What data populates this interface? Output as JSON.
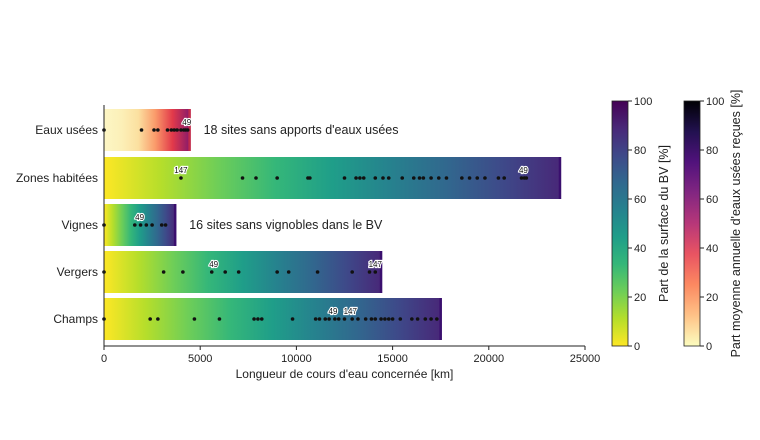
{
  "chart_data": {
    "type": "bar",
    "orientation": "horizontal",
    "xlabel": "Longueur de cours d'eau concernée [km]",
    "xlim": [
      0,
      25000
    ],
    "xticks": [
      "0",
      "5000",
      "10000",
      "15000",
      "20000",
      "25000"
    ],
    "series": [
      {
        "category": "Eaux usées",
        "length_km": 4450,
        "colormap": "eaux",
        "site_points_km": [
          0,
          1950,
          2600,
          2800,
          3300,
          3500,
          3650,
          3800,
          4000,
          4150,
          4250,
          4350
        ],
        "site_labels": [
          {
            "text": "49",
            "x_km": 4300
          }
        ],
        "annotation": "18 sites sans apports d'eaux usées"
      },
      {
        "category": "Zones habitées",
        "length_km": 23700,
        "colormap": "surface",
        "site_points_km": [
          4000,
          7200,
          7900,
          9000,
          10600,
          10700,
          12500,
          13100,
          13300,
          13500,
          14100,
          14500,
          14800,
          15500,
          16100,
          16400,
          16600,
          17000,
          17400,
          17800,
          18600,
          19000,
          19400,
          19800,
          20500,
          20800,
          21700,
          21850,
          21950
        ],
        "site_labels": [
          {
            "text": "147",
            "x_km": 4000
          },
          {
            "text": "49",
            "x_km": 21800
          }
        ],
        "annotation": ""
      },
      {
        "category": "Vignes",
        "length_km": 3700,
        "colormap": "surface",
        "site_points_km": [
          0,
          1600,
          1900,
          2200,
          2500,
          3000,
          3200
        ],
        "site_labels": [
          {
            "text": "49",
            "x_km": 1850
          }
        ],
        "annotation": "16 sites sans vignobles dans le BV"
      },
      {
        "category": "Vergers",
        "length_km": 14400,
        "colormap": "surface",
        "site_points_km": [
          0,
          3100,
          4100,
          5600,
          6300,
          7000,
          9000,
          9600,
          11100,
          12900,
          13800,
          14100
        ],
        "site_labels": [
          {
            "text": "49",
            "x_km": 5700
          },
          {
            "text": "147",
            "x_km": 14100
          }
        ],
        "annotation": ""
      },
      {
        "category": "Champs",
        "length_km": 17500,
        "colormap": "surface",
        "site_points_km": [
          0,
          2400,
          2800,
          4700,
          6000,
          7800,
          8000,
          8200,
          9800,
          11000,
          11200,
          11500,
          11700,
          12000,
          12200,
          12500,
          12900,
          13200,
          13600,
          13900,
          14100,
          14400,
          14600,
          14800,
          15000,
          15400,
          16000,
          16300,
          16700,
          17000,
          17300
        ],
        "site_labels": [
          {
            "text": "49",
            "x_km": 11900
          },
          {
            "text": "147",
            "x_km": 12800
          }
        ],
        "annotation": ""
      }
    ],
    "colorbars": [
      {
        "label": "Part de la surface du BV [%]",
        "ticks": [
          "0",
          "20",
          "40",
          "60",
          "80",
          "100"
        ],
        "range": [
          0,
          100
        ],
        "colormap": "surface"
      },
      {
        "label": "Part moyenne annuelle d'eaux usées reçues [%]",
        "ticks": [
          "0",
          "20",
          "40",
          "60",
          "80",
          "100"
        ],
        "range": [
          0,
          100
        ],
        "colormap": "eaux"
      }
    ],
    "colormaps": {
      "surface": [
        "#fde725",
        "#b5de2b",
        "#6ece58",
        "#35b779",
        "#1f9e89",
        "#26828e",
        "#31688e",
        "#3e4989",
        "#482878",
        "#440154"
      ],
      "eaux": [
        "#fcfdbf",
        "#fec287",
        "#fc8961",
        "#e95462",
        "#b73779",
        "#822681",
        "#51127c",
        "#221150",
        "#000004"
      ]
    }
  }
}
